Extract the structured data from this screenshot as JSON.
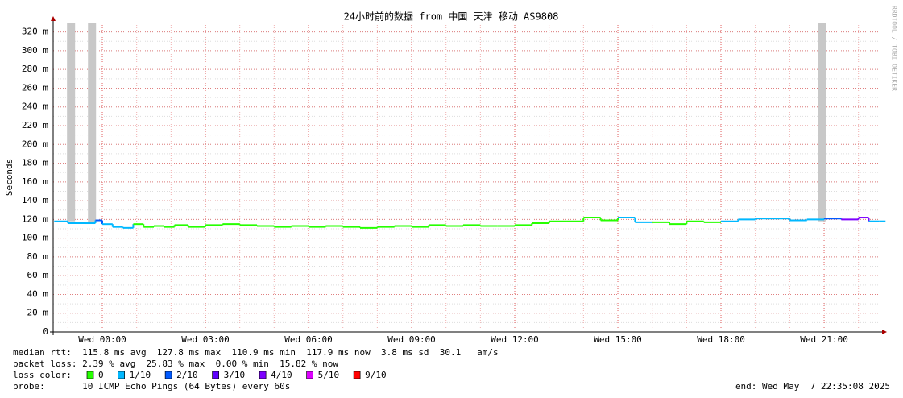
{
  "chart_data": {
    "type": "smokeping",
    "title": "24小时前的数据 from 中国 天津 移动 AS9808",
    "y_label": "Seconds",
    "watermark": "RRDTOOL / TOBI OETIKER",
    "ylim": [
      0,
      0.33
    ],
    "yticks": [
      {
        "value": 0,
        "label": "0"
      },
      {
        "value": 0.02,
        "label": "20 m"
      },
      {
        "value": 0.04,
        "label": "40 m"
      },
      {
        "value": 0.06,
        "label": "60 m"
      },
      {
        "value": 0.08,
        "label": "80 m"
      },
      {
        "value": 0.1,
        "label": "100 m"
      },
      {
        "value": 0.12,
        "label": "120 m"
      },
      {
        "value": 0.14,
        "label": "140 m"
      },
      {
        "value": 0.16,
        "label": "160 m"
      },
      {
        "value": 0.18,
        "label": "180 m"
      },
      {
        "value": 0.2,
        "label": "200 m"
      },
      {
        "value": 0.22,
        "label": "220 m"
      },
      {
        "value": 0.24,
        "label": "240 m"
      },
      {
        "value": 0.26,
        "label": "260 m"
      },
      {
        "value": 0.28,
        "label": "280 m"
      },
      {
        "value": 0.3,
        "label": "300 m"
      },
      {
        "value": 0.32,
        "label": "320 m"
      }
    ],
    "xlim": [
      -1.43,
      22.64
    ],
    "xticks": [
      {
        "value": 0,
        "label": "Wed 00:00"
      },
      {
        "value": 3,
        "label": "Wed 03:00"
      },
      {
        "value": 6,
        "label": "Wed 06:00"
      },
      {
        "value": 9,
        "label": "Wed 09:00"
      },
      {
        "value": 12,
        "label": "Wed 12:00"
      },
      {
        "value": 15,
        "label": "Wed 15:00"
      },
      {
        "value": 18,
        "label": "Wed 18:00"
      },
      {
        "value": 21,
        "label": "Wed 21:00"
      }
    ],
    "grid": true,
    "loss_colors": [
      {
        "label": "0",
        "color": "#26ff00"
      },
      {
        "label": "1/10",
        "color": "#00b8ff"
      },
      {
        "label": "2/10",
        "color": "#0059ff"
      },
      {
        "label": "3/10",
        "color": "#5e00ff"
      },
      {
        "label": "4/10",
        "color": "#7e00ff"
      },
      {
        "label": "5/10",
        "color": "#dd00ff"
      },
      {
        "label": "9/10",
        "color": "#ff0000"
      }
    ],
    "median": {
      "x": [
        -1.4,
        -1.0,
        -0.5,
        -0.2,
        0,
        0.3,
        0.6,
        0.9,
        1.2,
        1.5,
        1.8,
        2.1,
        2.5,
        3.0,
        3.5,
        4.0,
        4.5,
        5.0,
        5.5,
        6.0,
        6.5,
        7.0,
        7.5,
        8.0,
        8.5,
        9.0,
        9.5,
        10.0,
        10.5,
        11.0,
        11.5,
        12.0,
        12.5,
        13.0,
        13.5,
        14.0,
        14.5,
        15.0,
        15.5,
        16.0,
        16.5,
        17.0,
        17.5,
        18.0,
        18.5,
        19.0,
        19.5,
        20.0,
        20.5,
        21.0,
        21.5,
        22.0,
        22.3,
        22.6
      ],
      "values": [
        0.118,
        0.116,
        0.116,
        0.119,
        0.115,
        0.112,
        0.111,
        0.115,
        0.112,
        0.113,
        0.112,
        0.114,
        0.112,
        0.114,
        0.115,
        0.114,
        0.113,
        0.112,
        0.113,
        0.112,
        0.113,
        0.112,
        0.111,
        0.112,
        0.113,
        0.112,
        0.114,
        0.113,
        0.114,
        0.113,
        0.113,
        0.114,
        0.116,
        0.118,
        0.118,
        0.122,
        0.119,
        0.122,
        0.117,
        0.117,
        0.115,
        0.118,
        0.117,
        0.118,
        0.12,
        0.121,
        0.121,
        0.119,
        0.12,
        0.121,
        0.12,
        0.122,
        0.118,
        0.118
      ],
      "loss": [
        1,
        1,
        1,
        2,
        1,
        1,
        1,
        0,
        0,
        0,
        0,
        0,
        0,
        0,
        0,
        0,
        0,
        0,
        0,
        0,
        0,
        0,
        0,
        0,
        0,
        0,
        0,
        0,
        0,
        0,
        0,
        0,
        0,
        0,
        0,
        0,
        0,
        1,
        1,
        0,
        0,
        0,
        0,
        1,
        1,
        1,
        1,
        1,
        1,
        2,
        4,
        4,
        1,
        1
      ]
    },
    "smoke": {
      "x": [
        -0.91,
        -0.3,
        20.93
      ],
      "low": [
        0.118,
        0.116,
        0.118
      ],
      "high": [
        0.33,
        0.33,
        0.33
      ]
    },
    "stats": [
      "median rtt:  115.8 ms avg  127.8 ms max  110.9 ms min  117.9 ms now  3.8 ms sd  30.1   am/s",
      "packet loss: 2.39 % avg  25.83 % max  0.00 % min  15.82 % now"
    ],
    "loss_label": "loss color:",
    "probe": "probe:       10 ICMP Echo Pings (64 Bytes) every 60s",
    "end": "end: Wed May  7 22:35:08 2025"
  }
}
